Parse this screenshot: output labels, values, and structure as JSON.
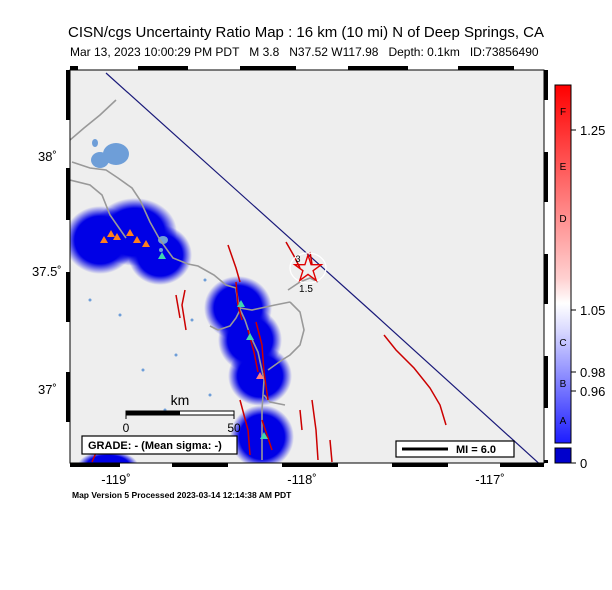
{
  "title": "CISN/cgs Uncertainty Ratio Map : 16 km (10 mi) N of Deep Springs, CA",
  "subtitle": {
    "datetime": "Mar 13, 2023 10:00:29 PM PDT",
    "magnitude": "M 3.8",
    "location": "N37.52 W117.98",
    "depth": "Depth: 0.1km",
    "event_id": "ID:73856490"
  },
  "footer": "Map Version 5 Processed 2023-03-14 12:14:38 AM PDT",
  "map": {
    "lat_ticks": [
      "38˚",
      "37.5˚",
      "37˚"
    ],
    "lon_ticks": [
      "-119˚",
      "-118˚",
      "-117˚"
    ],
    "contour_labels": [
      "3",
      "1.5"
    ],
    "scale_bar": {
      "unit": "km",
      "ticks": [
        "0",
        "50"
      ]
    },
    "grade_box": "GRADE: - (Mean sigma: -)",
    "mi_legend": "MI = 6.0",
    "colors": {
      "land": "#eeeeee",
      "uncertainty_blue": "#0000e6",
      "faults": "#cc0000",
      "roads": "#999999",
      "lakes": "#6e9ed8",
      "state_border": "#1a1a7a",
      "epicenter_star": "#e00000"
    },
    "stations": [
      {
        "type": "orange-triangle",
        "lon": -119.1,
        "lat": 37.65
      },
      {
        "type": "orange-triangle",
        "lon": -119.0,
        "lat": 37.66
      },
      {
        "type": "cyan-triangle",
        "lon": -118.78,
        "lat": 37.58
      },
      {
        "type": "cyan-triangle",
        "lon": -118.36,
        "lat": 37.38
      },
      {
        "type": "cyan-triangle",
        "lon": -118.32,
        "lat": 37.22
      },
      {
        "type": "pink-triangle",
        "lon": -118.28,
        "lat": 37.0
      },
      {
        "type": "cyan-triangle",
        "lon": -118.25,
        "lat": 36.77
      }
    ]
  },
  "colorbar": {
    "letters": [
      "F",
      "E",
      "D",
      "C",
      "B",
      "A"
    ],
    "values": [
      "1.25",
      "1.05",
      "0.98",
      "0.96",
      "0"
    ],
    "gradient": [
      "#ff0000",
      "#ffffff",
      "#0000ff"
    ],
    "bottom_swatch": "#0000cc"
  }
}
